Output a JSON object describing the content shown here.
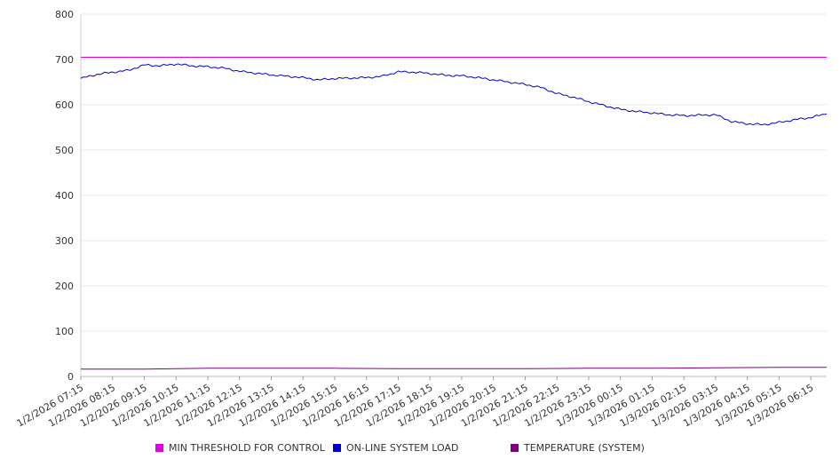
{
  "chart_data": {
    "type": "line",
    "title": "",
    "xlabel": "",
    "ylabel": "",
    "ylim": [
      0,
      800
    ],
    "yticks": [
      0,
      100,
      200,
      300,
      400,
      500,
      600,
      700,
      800
    ],
    "grid": true,
    "legend_position": "bottom",
    "x_ticks": [
      "1/2/2026 07:15",
      "1/2/2026 08:15",
      "1/2/2026 09:15",
      "1/2/2026 10:15",
      "1/2/2026 11:15",
      "1/2/2026 12:15",
      "1/2/2026 13:15",
      "1/2/2026 14:15",
      "1/2/2026 15:15",
      "1/2/2026 16:15",
      "1/2/2026 17:15",
      "1/2/2026 18:15",
      "1/2/2026 19:15",
      "1/2/2026 20:15",
      "1/2/2026 21:15",
      "1/2/2026 22:15",
      "1/2/2026 23:15",
      "1/3/2026 00:15",
      "1/3/2026 01:15",
      "1/3/2026 02:15",
      "1/3/2026 03:15",
      "1/3/2026 04:15",
      "1/3/2026 05:15",
      "1/3/2026 06:15"
    ],
    "series": [
      {
        "name": "MIN THRESHOLD FOR CONTROL",
        "color": "#e000e0",
        "x": [
          "1/2/2026 07:15",
          "1/3/2026 06:15"
        ],
        "values": [
          705,
          705
        ]
      },
      {
        "name": "ON-LINE SYSTEM LOAD",
        "color": "#0000cc",
        "x": [
          "1/2/2026 07:15",
          "1/2/2026 07:45",
          "1/2/2026 08:15",
          "1/2/2026 08:45",
          "1/2/2026 09:15",
          "1/2/2026 09:45",
          "1/2/2026 10:15",
          "1/2/2026 10:45",
          "1/2/2026 11:15",
          "1/2/2026 11:45",
          "1/2/2026 12:15",
          "1/2/2026 12:45",
          "1/2/2026 13:15",
          "1/2/2026 13:45",
          "1/2/2026 14:15",
          "1/2/2026 14:45",
          "1/2/2026 15:15",
          "1/2/2026 15:45",
          "1/2/2026 16:15",
          "1/2/2026 16:45",
          "1/2/2026 17:15",
          "1/2/2026 17:45",
          "1/2/2026 18:15",
          "1/2/2026 18:45",
          "1/2/2026 19:15",
          "1/2/2026 19:45",
          "1/2/2026 20:15",
          "1/2/2026 20:45",
          "1/2/2026 21:15",
          "1/2/2026 21:45",
          "1/2/2026 22:15",
          "1/2/2026 22:45",
          "1/2/2026 23:15",
          "1/2/2026 23:45",
          "1/3/2026 00:15",
          "1/3/2026 00:45",
          "1/3/2026 01:15",
          "1/3/2026 01:45",
          "1/3/2026 02:15",
          "1/3/2026 02:45",
          "1/3/2026 03:15",
          "1/3/2026 03:45",
          "1/3/2026 04:15",
          "1/3/2026 04:45",
          "1/3/2026 05:15",
          "1/3/2026 05:45",
          "1/3/2026 06:15",
          "1/3/2026 06:45"
        ],
        "values": [
          658,
          667,
          672,
          676,
          688,
          686,
          690,
          686,
          684,
          681,
          674,
          670,
          666,
          663,
          660,
          655,
          658,
          659,
          660,
          663,
          673,
          672,
          669,
          665,
          664,
          660,
          655,
          650,
          645,
          638,
          625,
          617,
          607,
          598,
          590,
          585,
          582,
          578,
          576,
          577,
          578,
          563,
          558,
          556,
          561,
          567,
          572,
          580
        ]
      },
      {
        "name": "TEMPERATURE (SYSTEM)",
        "color": "#800080",
        "x": [
          "1/2/2026 07:15",
          "1/2/2026 09:15",
          "1/2/2026 11:15",
          "1/2/2026 13:15",
          "1/2/2026 15:15",
          "1/2/2026 17:15",
          "1/2/2026 19:15",
          "1/2/2026 21:15",
          "1/2/2026 23:15",
          "1/3/2026 01:15",
          "1/3/2026 03:15",
          "1/3/2026 05:15",
          "1/3/2026 06:45"
        ],
        "values": [
          16,
          16,
          18,
          18,
          18,
          17,
          17,
          17,
          18,
          18,
          19,
          20,
          20
        ]
      }
    ]
  }
}
